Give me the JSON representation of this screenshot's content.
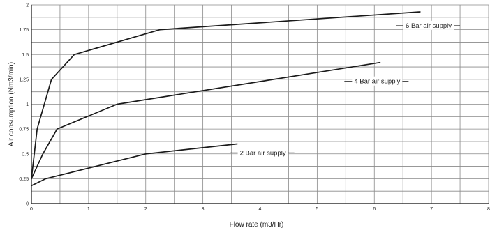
{
  "chart_data": {
    "type": "line",
    "xlabel": "Flow rate (m3/Hr)",
    "ylabel": "Air consumption (Nm3/min)",
    "xlim": [
      0,
      8
    ],
    "ylim": [
      0,
      2
    ],
    "x_ticks": [
      "0",
      "1",
      "2",
      "3",
      "4",
      "5",
      "6",
      "7",
      "8"
    ],
    "y_ticks": [
      "0",
      "0.25",
      "0.5",
      "0.75",
      "1",
      "1.25",
      "1.5",
      "1.75",
      "2"
    ],
    "grid": true,
    "series": [
      {
        "name": "6 Bar air supply",
        "points": [
          [
            0,
            0.25
          ],
          [
            0.1,
            0.75
          ],
          [
            0.35,
            1.25
          ],
          [
            0.75,
            1.5
          ],
          [
            2.25,
            1.75
          ],
          [
            6.8,
            1.93
          ]
        ],
        "label_at": [
          6.95,
          1.79
        ]
      },
      {
        "name": "4 Bar air supply",
        "points": [
          [
            0,
            0.25
          ],
          [
            0.2,
            0.5
          ],
          [
            0.45,
            0.75
          ],
          [
            1.5,
            1.0
          ],
          [
            6.1,
            1.42
          ]
        ],
        "label_at": [
          6.05,
          1.23
        ]
      },
      {
        "name": "2 Bar air supply",
        "points": [
          [
            0,
            0.18
          ],
          [
            0.25,
            0.25
          ],
          [
            2.0,
            0.5
          ],
          [
            3.6,
            0.6
          ]
        ],
        "label_at": [
          4.05,
          0.51
        ]
      }
    ]
  }
}
